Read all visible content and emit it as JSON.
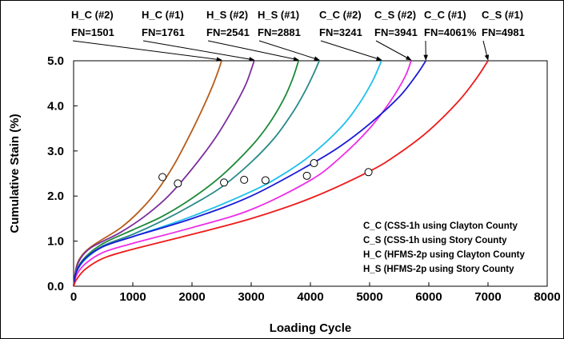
{
  "chart_data": {
    "type": "line",
    "xlabel": "Loading Cycle",
    "ylabel": "Cumulative Stain (%)",
    "xlim": [
      0,
      8000
    ],
    "ylim": [
      0,
      5
    ],
    "x_ticks": [
      "0",
      "1000",
      "2000",
      "3000",
      "4000",
      "5000",
      "6000",
      "7000",
      "8000"
    ],
    "y_ticks": [
      "0.0",
      "1.0",
      "2.0",
      "3.0",
      "4.0",
      "5.0"
    ],
    "grid": false,
    "series": [
      {
        "name": "H_C (#2)",
        "color": "#b85c1a",
        "x": [
          0,
          50,
          150,
          300,
          500,
          800,
          1100,
          1400,
          1700,
          2000,
          2200,
          2350,
          2450,
          2500
        ],
        "y": [
          0,
          0.45,
          0.7,
          0.88,
          1.05,
          1.3,
          1.65,
          2.1,
          2.7,
          3.45,
          4.0,
          4.45,
          4.8,
          5.0
        ],
        "fn_marker": {
          "x": 1501,
          "y": 2.42
        }
      },
      {
        "name": "H_C (#1)",
        "color": "#7b2f9e",
        "x": [
          0,
          50,
          150,
          300,
          500,
          800,
          1200,
          1600,
          2000,
          2400,
          2700,
          2900,
          3000,
          3050
        ],
        "y": [
          0,
          0.42,
          0.68,
          0.86,
          1.0,
          1.2,
          1.55,
          2.0,
          2.6,
          3.3,
          3.95,
          4.45,
          4.8,
          5.0
        ],
        "fn_marker": {
          "x": 1761,
          "y": 2.28
        }
      },
      {
        "name": "H_S (#2)",
        "color": "#1e8a3a",
        "x": [
          0,
          50,
          200,
          500,
          1000,
          1500,
          2000,
          2500,
          3000,
          3300,
          3550,
          3700,
          3800
        ],
        "y": [
          0,
          0.35,
          0.65,
          0.95,
          1.25,
          1.55,
          1.95,
          2.45,
          3.1,
          3.6,
          4.15,
          4.6,
          5.0
        ],
        "fn_marker": {
          "x": 2541,
          "y": 2.3
        }
      },
      {
        "name": "H_S (#1)",
        "color": "#2a8a8a",
        "x": [
          0,
          50,
          200,
          500,
          1000,
          1500,
          2000,
          2500,
          3000,
          3400,
          3700,
          3900,
          4050,
          4150
        ],
        "y": [
          0,
          0.33,
          0.62,
          0.9,
          1.15,
          1.45,
          1.8,
          2.2,
          2.75,
          3.3,
          3.85,
          4.3,
          4.7,
          5.0
        ],
        "fn_marker": {
          "x": 2881,
          "y": 2.36
        }
      },
      {
        "name": "C_C (#2)",
        "color": "#1ec0ee",
        "x": [
          0,
          50,
          200,
          500,
          1000,
          2000,
          3000,
          3500,
          4000,
          4500,
          4800,
          5050,
          5200
        ],
        "y": [
          0,
          0.32,
          0.6,
          0.88,
          1.1,
          1.55,
          2.1,
          2.45,
          2.9,
          3.5,
          4.0,
          4.55,
          5.0
        ],
        "fn_marker": {
          "x": 3241,
          "y": 2.35
        }
      },
      {
        "name": "C_S (#2)",
        "color": "#ee2ee6",
        "x": [
          0,
          50,
          200,
          500,
          1000,
          2000,
          3000,
          4000,
          4500,
          5000,
          5350,
          5600,
          5700
        ],
        "y": [
          0,
          0.25,
          0.5,
          0.75,
          0.95,
          1.3,
          1.7,
          2.35,
          2.85,
          3.5,
          4.1,
          4.65,
          5.0
        ],
        "fn_marker": {
          "x": 3941,
          "y": 2.45
        }
      },
      {
        "name": "C_C (#1)",
        "color": "#1a1ad8",
        "x": [
          0,
          50,
          200,
          500,
          1000,
          2000,
          3000,
          4000,
          4500,
          5000,
          5500,
          5800,
          5950
        ],
        "y": [
          0,
          0.33,
          0.62,
          0.88,
          1.1,
          1.5,
          2.0,
          2.7,
          3.1,
          3.6,
          4.2,
          4.7,
          5.0
        ],
        "fn_marker": {
          "x": 4061,
          "y": 2.73
        }
      },
      {
        "name": "C_S (#1)",
        "color": "#ee1a1a",
        "x": [
          0,
          50,
          200,
          500,
          1000,
          2000,
          3000,
          4000,
          5000,
          5500,
          6000,
          6500,
          6800,
          7000
        ],
        "y": [
          0,
          0.15,
          0.38,
          0.62,
          0.82,
          1.15,
          1.5,
          1.95,
          2.55,
          2.95,
          3.45,
          4.1,
          4.6,
          5.0
        ],
        "fn_marker": {
          "x": 4981,
          "y": 2.53
        }
      }
    ],
    "annotations": [
      {
        "label": "H_C (#2)",
        "fn": "FN=1501",
        "target_x": 2500,
        "target_y": 5.0
      },
      {
        "label": "H_C (#1)",
        "fn": "FN=1761",
        "target_x": 3050,
        "target_y": 5.0
      },
      {
        "label": "H_S (#2)",
        "fn": "FN=2541",
        "target_x": 3800,
        "target_y": 5.0
      },
      {
        "label": "H_S (#1)",
        "fn": "FN=2881",
        "target_x": 4150,
        "target_y": 5.0
      },
      {
        "label": "C_C (#2)",
        "fn": "FN=3241",
        "target_x": 5200,
        "target_y": 5.0
      },
      {
        "label": "C_S (#2)",
        "fn": "FN=3941",
        "target_x": 5700,
        "target_y": 5.0
      },
      {
        "label": "C_C (#1)",
        "fn": "FN=4061%",
        "target_x": 5950,
        "target_y": 5.0
      },
      {
        "label": "C_S (#1)",
        "fn": "FN=4981",
        "target_x": 7000,
        "target_y": 5.0
      }
    ],
    "legend_text": [
      "C_C (CSS-1h using Clayton County",
      "C_S (CSS-1h using Story County",
      "H_C (HFMS-2p using Clayton County",
      "H_S (HFMS-2p using Story County"
    ],
    "legend_position": "bottom-right"
  }
}
